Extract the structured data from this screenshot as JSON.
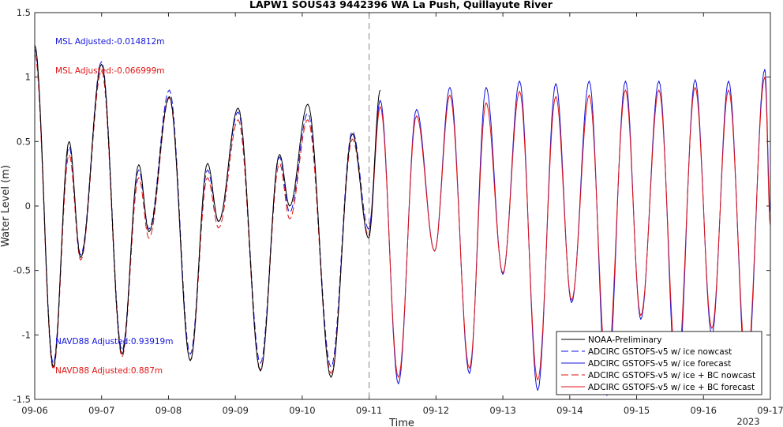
{
  "chart_data": {
    "type": "line",
    "title": "LAPW1 SOUS43 9442396 WA La Push, Quillayute River",
    "xlabel": "Time",
    "ylabel": "Water Level (m)",
    "xlim": [
      "09-06",
      "09-17"
    ],
    "ylim": [
      -1.5,
      1.5
    ],
    "x_ticks": [
      "09-06",
      "09-07",
      "09-08",
      "09-09",
      "09-10",
      "09-11",
      "09-12",
      "09-13",
      "09-14",
      "09-15",
      "09-16",
      "09-17"
    ],
    "y_ticks": [
      "1.5",
      "1",
      "0.5",
      "0",
      "-0.5",
      "-1",
      "-1.5"
    ],
    "year_label": "2023",
    "nowcast_forecast_divider": "09-11",
    "legend_position": "bottom-right",
    "annotations": [
      {
        "text": "MSL Adjusted:-0.014812m",
        "color": "#1414dc"
      },
      {
        "text": "MSL Adjusted:-0.066999m",
        "color": "#e01414"
      },
      {
        "text": "NAVD88 Adjusted:0.93919m",
        "color": "#1414dc"
      },
      {
        "text": "NAVD88 Adjusted:0.887m",
        "color": "#e01414"
      }
    ],
    "series": [
      {
        "name": "NOAA-Preliminary",
        "color": "#000000",
        "dash": "solid",
        "extrema": [
          {
            "t": "09-06 00:00",
            "v": 1.25
          },
          {
            "t": "09-06 06:40",
            "v": -1.25
          },
          {
            "t": "09-06 12:20",
            "v": 0.5
          },
          {
            "t": "09-06 16:30",
            "v": -0.4
          },
          {
            "t": "09-07 00:00",
            "v": 1.1
          },
          {
            "t": "09-07 07:20",
            "v": -1.15
          },
          {
            "t": "09-07 13:20",
            "v": 0.32
          },
          {
            "t": "09-07 17:00",
            "v": -0.2
          },
          {
            "t": "09-08 00:20",
            "v": 0.85
          },
          {
            "t": "09-08 07:50",
            "v": -1.2
          },
          {
            "t": "09-08 14:00",
            "v": 0.33
          },
          {
            "t": "09-08 18:00",
            "v": -0.12
          },
          {
            "t": "09-09 01:00",
            "v": 0.76
          },
          {
            "t": "09-09 09:00",
            "v": -1.28
          },
          {
            "t": "09-09 15:50",
            "v": 0.4
          },
          {
            "t": "09-09 19:30",
            "v": 0.0
          },
          {
            "t": "09-10 02:00",
            "v": 0.79
          },
          {
            "t": "09-10 10:20",
            "v": -1.33
          },
          {
            "t": "09-10 18:00",
            "v": 0.56
          },
          {
            "t": "09-10 23:50",
            "v": -0.25
          },
          {
            "t": "09-11 04:00",
            "v": 0.9
          }
        ]
      },
      {
        "name": "ADCIRC GSTOFS-v5 w/ ice nowcast",
        "color": "#1414dc",
        "dash": "dashed",
        "extrema": [
          {
            "t": "09-06 00:00",
            "v": 1.22
          },
          {
            "t": "09-06 06:40",
            "v": -1.22
          },
          {
            "t": "09-06 12:20",
            "v": 0.46
          },
          {
            "t": "09-06 16:30",
            "v": -0.38
          },
          {
            "t": "09-07 00:00",
            "v": 1.12
          },
          {
            "t": "09-07 07:20",
            "v": -1.12
          },
          {
            "t": "09-07 13:20",
            "v": 0.28
          },
          {
            "t": "09-07 17:00",
            "v": -0.18
          },
          {
            "t": "09-08 00:20",
            "v": 0.9
          },
          {
            "t": "09-08 07:50",
            "v": -1.15
          },
          {
            "t": "09-08 14:00",
            "v": 0.28
          },
          {
            "t": "09-08 18:00",
            "v": -0.12
          },
          {
            "t": "09-09 01:00",
            "v": 0.73
          },
          {
            "t": "09-09 09:00",
            "v": -1.22
          },
          {
            "t": "09-09 15:50",
            "v": 0.38
          },
          {
            "t": "09-09 19:30",
            "v": -0.05
          },
          {
            "t": "09-10 02:00",
            "v": 0.72
          },
          {
            "t": "09-10 10:20",
            "v": -1.25
          },
          {
            "t": "09-10 18:00",
            "v": 0.58
          },
          {
            "t": "09-10 23:50",
            "v": -0.18
          }
        ]
      },
      {
        "name": "ADCIRC GSTOFS-v5 w/ ice forecast",
        "color": "#1414dc",
        "dash": "solid",
        "extrema": [
          {
            "t": "09-10 23:50",
            "v": -0.18
          },
          {
            "t": "09-11 04:00",
            "v": 0.82
          },
          {
            "t": "09-11 10:30",
            "v": -1.38
          },
          {
            "t": "09-11 17:00",
            "v": 0.75
          },
          {
            "t": "09-11 23:30",
            "v": -0.35
          },
          {
            "t": "09-12 05:00",
            "v": 0.92
          },
          {
            "t": "09-12 12:00",
            "v": -1.3
          },
          {
            "t": "09-12 18:00",
            "v": 0.92
          },
          {
            "t": "09-13 00:00",
            "v": -0.53
          },
          {
            "t": "09-13 06:00",
            "v": 0.97
          },
          {
            "t": "09-13 12:30",
            "v": -1.43
          },
          {
            "t": "09-13 19:00",
            "v": 0.95
          },
          {
            "t": "09-14 00:40",
            "v": -0.75
          },
          {
            "t": "09-14 07:00",
            "v": 0.97
          },
          {
            "t": "09-14 13:20",
            "v": -1.47
          },
          {
            "t": "09-14 20:00",
            "v": 0.97
          },
          {
            "t": "09-15 01:30",
            "v": -0.88
          },
          {
            "t": "09-15 08:00",
            "v": 0.97
          },
          {
            "t": "09-15 14:30",
            "v": -1.45
          },
          {
            "t": "09-15 21:00",
            "v": 0.98
          },
          {
            "t": "09-16 03:00",
            "v": -1.0
          },
          {
            "t": "09-16 09:00",
            "v": 0.97
          },
          {
            "t": "09-16 15:30",
            "v": -1.35
          },
          {
            "t": "09-16 22:00",
            "v": 1.06
          },
          {
            "t": "09-17 00:00",
            "v": -0.05
          }
        ]
      },
      {
        "name": "ADCIRC GSTOFS-v5 w/ ice + BC nowcast",
        "color": "#e01414",
        "dash": "dashed",
        "extrema": [
          {
            "t": "09-06 00:00",
            "v": 1.18
          },
          {
            "t": "09-06 06:40",
            "v": -1.27
          },
          {
            "t": "09-06 12:20",
            "v": 0.4
          },
          {
            "t": "09-06 16:30",
            "v": -0.42
          },
          {
            "t": "09-07 00:00",
            "v": 1.05
          },
          {
            "t": "09-07 07:20",
            "v": -1.17
          },
          {
            "t": "09-07 13:20",
            "v": 0.22
          },
          {
            "t": "09-07 17:00",
            "v": -0.25
          },
          {
            "t": "09-08 00:20",
            "v": 0.84
          },
          {
            "t": "09-08 07:50",
            "v": -1.2
          },
          {
            "t": "09-08 14:00",
            "v": 0.22
          },
          {
            "t": "09-08 18:00",
            "v": -0.17
          },
          {
            "t": "09-09 01:00",
            "v": 0.67
          },
          {
            "t": "09-09 09:00",
            "v": -1.27
          },
          {
            "t": "09-09 15:50",
            "v": 0.33
          },
          {
            "t": "09-09 19:30",
            "v": -0.1
          },
          {
            "t": "09-10 02:00",
            "v": 0.67
          },
          {
            "t": "09-10 10:20",
            "v": -1.3
          },
          {
            "t": "09-10 18:00",
            "v": 0.52
          },
          {
            "t": "09-10 23:50",
            "v": -0.23
          }
        ]
      },
      {
        "name": "ADCIRC GSTOFS-v5 w/ ice + BC forecast",
        "color": "#e01414",
        "dash": "solid",
        "extrema": [
          {
            "t": "09-10 23:50",
            "v": -0.23
          },
          {
            "t": "09-11 04:00",
            "v": 0.77
          },
          {
            "t": "09-11 10:30",
            "v": -1.33
          },
          {
            "t": "09-11 17:00",
            "v": 0.7
          },
          {
            "t": "09-11 23:30",
            "v": -0.35
          },
          {
            "t": "09-12 05:00",
            "v": 0.86
          },
          {
            "t": "09-12 12:00",
            "v": -1.26
          },
          {
            "t": "09-12 18:00",
            "v": 0.8
          },
          {
            "t": "09-13 00:00",
            "v": -0.52
          },
          {
            "t": "09-13 06:00",
            "v": 0.89
          },
          {
            "t": "09-13 12:30",
            "v": -1.35
          },
          {
            "t": "09-13 19:00",
            "v": 0.85
          },
          {
            "t": "09-14 00:40",
            "v": -0.73
          },
          {
            "t": "09-14 07:00",
            "v": 0.86
          },
          {
            "t": "09-14 13:20",
            "v": -1.3
          },
          {
            "t": "09-14 20:00",
            "v": 0.9
          },
          {
            "t": "09-15 01:30",
            "v": -0.85
          },
          {
            "t": "09-15 08:00",
            "v": 0.9
          },
          {
            "t": "09-15 14:30",
            "v": -1.3
          },
          {
            "t": "09-15 21:00",
            "v": 0.92
          },
          {
            "t": "09-16 03:00",
            "v": -0.95
          },
          {
            "t": "09-16 09:00",
            "v": 0.9
          },
          {
            "t": "09-16 15:30",
            "v": -1.25
          },
          {
            "t": "09-16 22:00",
            "v": 1.0
          },
          {
            "t": "09-17 00:00",
            "v": -0.15
          }
        ]
      }
    ]
  }
}
